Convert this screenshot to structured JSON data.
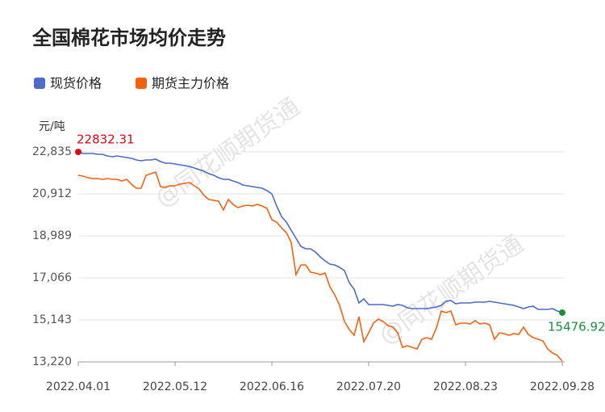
{
  "chart_data": {
    "type": "line",
    "title": "全国棉花市场均价走势",
    "y_unit": "元/吨",
    "watermark": "@同花顺期货通",
    "categories": [
      "2022.04.01",
      null,
      null,
      null,
      null,
      null,
      null,
      null,
      null,
      null,
      null,
      null,
      null,
      null,
      null,
      null,
      null,
      null,
      null,
      null,
      "2022.05.12",
      null,
      null,
      null,
      null,
      null,
      null,
      null,
      null,
      null,
      null,
      null,
      null,
      null,
      null,
      null,
      null,
      null,
      null,
      null,
      "2022.06.16",
      null,
      null,
      null,
      null,
      null,
      null,
      null,
      null,
      null,
      null,
      null,
      null,
      null,
      null,
      null,
      null,
      null,
      null,
      null,
      "2022.07.20",
      null,
      null,
      null,
      null,
      null,
      null,
      null,
      null,
      null,
      null,
      null,
      null,
      null,
      null,
      null,
      null,
      null,
      null,
      null,
      "2022.08.23",
      null,
      null,
      null,
      null,
      null,
      null,
      null,
      null,
      null,
      null,
      null,
      null,
      null,
      null,
      null,
      null,
      null,
      null,
      null,
      "2022.09.28"
    ],
    "series": [
      {
        "name": "现货价格",
        "color": "#4a6bc6",
        "values": [
          22832.31,
          22761,
          22761,
          22761,
          22724,
          22724,
          22650,
          22613,
          22650,
          22613,
          22576,
          22539,
          22465,
          22428,
          22465,
          22465,
          22502,
          22391,
          22317,
          22317,
          22280,
          22243,
          22206,
          22169,
          22095,
          22021,
          21947,
          21836,
          21762,
          21652,
          21578,
          21578,
          21504,
          21430,
          21319,
          21282,
          21245,
          21208,
          21171,
          21060,
          20912,
          20357,
          19877,
          19618,
          19248,
          18878,
          18508,
          18397,
          18397,
          18249,
          18027,
          17843,
          17695,
          17658,
          17547,
          17399,
          16844,
          16548,
          15920,
          16104,
          15846,
          15846,
          15846,
          15846,
          15809,
          15772,
          15846,
          15809,
          15698,
          15661,
          15661,
          15661,
          15661,
          15698,
          15735,
          15809,
          15994,
          16031,
          15883,
          15920,
          15920,
          15920,
          15957,
          15957,
          15957,
          15994,
          15957,
          15920,
          15883,
          15846,
          15809,
          15735,
          15661,
          15735,
          15772,
          15624,
          15624,
          15624,
          15661,
          15550,
          15476.92
        ]
      },
      {
        "name": "期货主力价格",
        "color": "#f5620f",
        "values": [
          21763,
          21726,
          21652,
          21615,
          21615,
          21578,
          21615,
          21578,
          21578,
          21504,
          21578,
          21356,
          21171,
          21171,
          21763,
          21837,
          21910,
          21245,
          21208,
          21282,
          21282,
          21356,
          21393,
          21430,
          21282,
          21134,
          20838,
          20653,
          20616,
          20579,
          20172,
          20653,
          20431,
          20283,
          20357,
          20394,
          20357,
          20431,
          20357,
          20246,
          19729,
          19618,
          19359,
          19137,
          18693,
          17214,
          17658,
          17658,
          17325,
          17288,
          17214,
          17288,
          16659,
          16290,
          15809,
          15069,
          14699,
          14441,
          15291,
          14145,
          14551,
          14995,
          15180,
          15069,
          14884,
          14810,
          14551,
          13886,
          13960,
          13886,
          13812,
          14256,
          14330,
          14256,
          14773,
          15550,
          15476,
          15550,
          14921,
          14995,
          14995,
          14958,
          15106,
          14958,
          14995,
          14921,
          14256,
          14551,
          14514,
          14441,
          14514,
          14478,
          14810,
          14478,
          14330,
          14256,
          14182,
          13812,
          13627,
          13516,
          13257
        ]
      }
    ],
    "ylim": [
      13220,
      22835
    ],
    "yticks": [
      {
        "value": 13220,
        "label": "13,220"
      },
      {
        "value": 15143,
        "label": "15,143"
      },
      {
        "value": 17066,
        "label": "17,066"
      },
      {
        "value": 18989,
        "label": "18,989"
      },
      {
        "value": 20912,
        "label": "20,912"
      },
      {
        "value": 22835,
        "label": "22,835"
      }
    ],
    "grid": true,
    "first_point_color": "#e60012",
    "last_point_color": "#18903c"
  }
}
